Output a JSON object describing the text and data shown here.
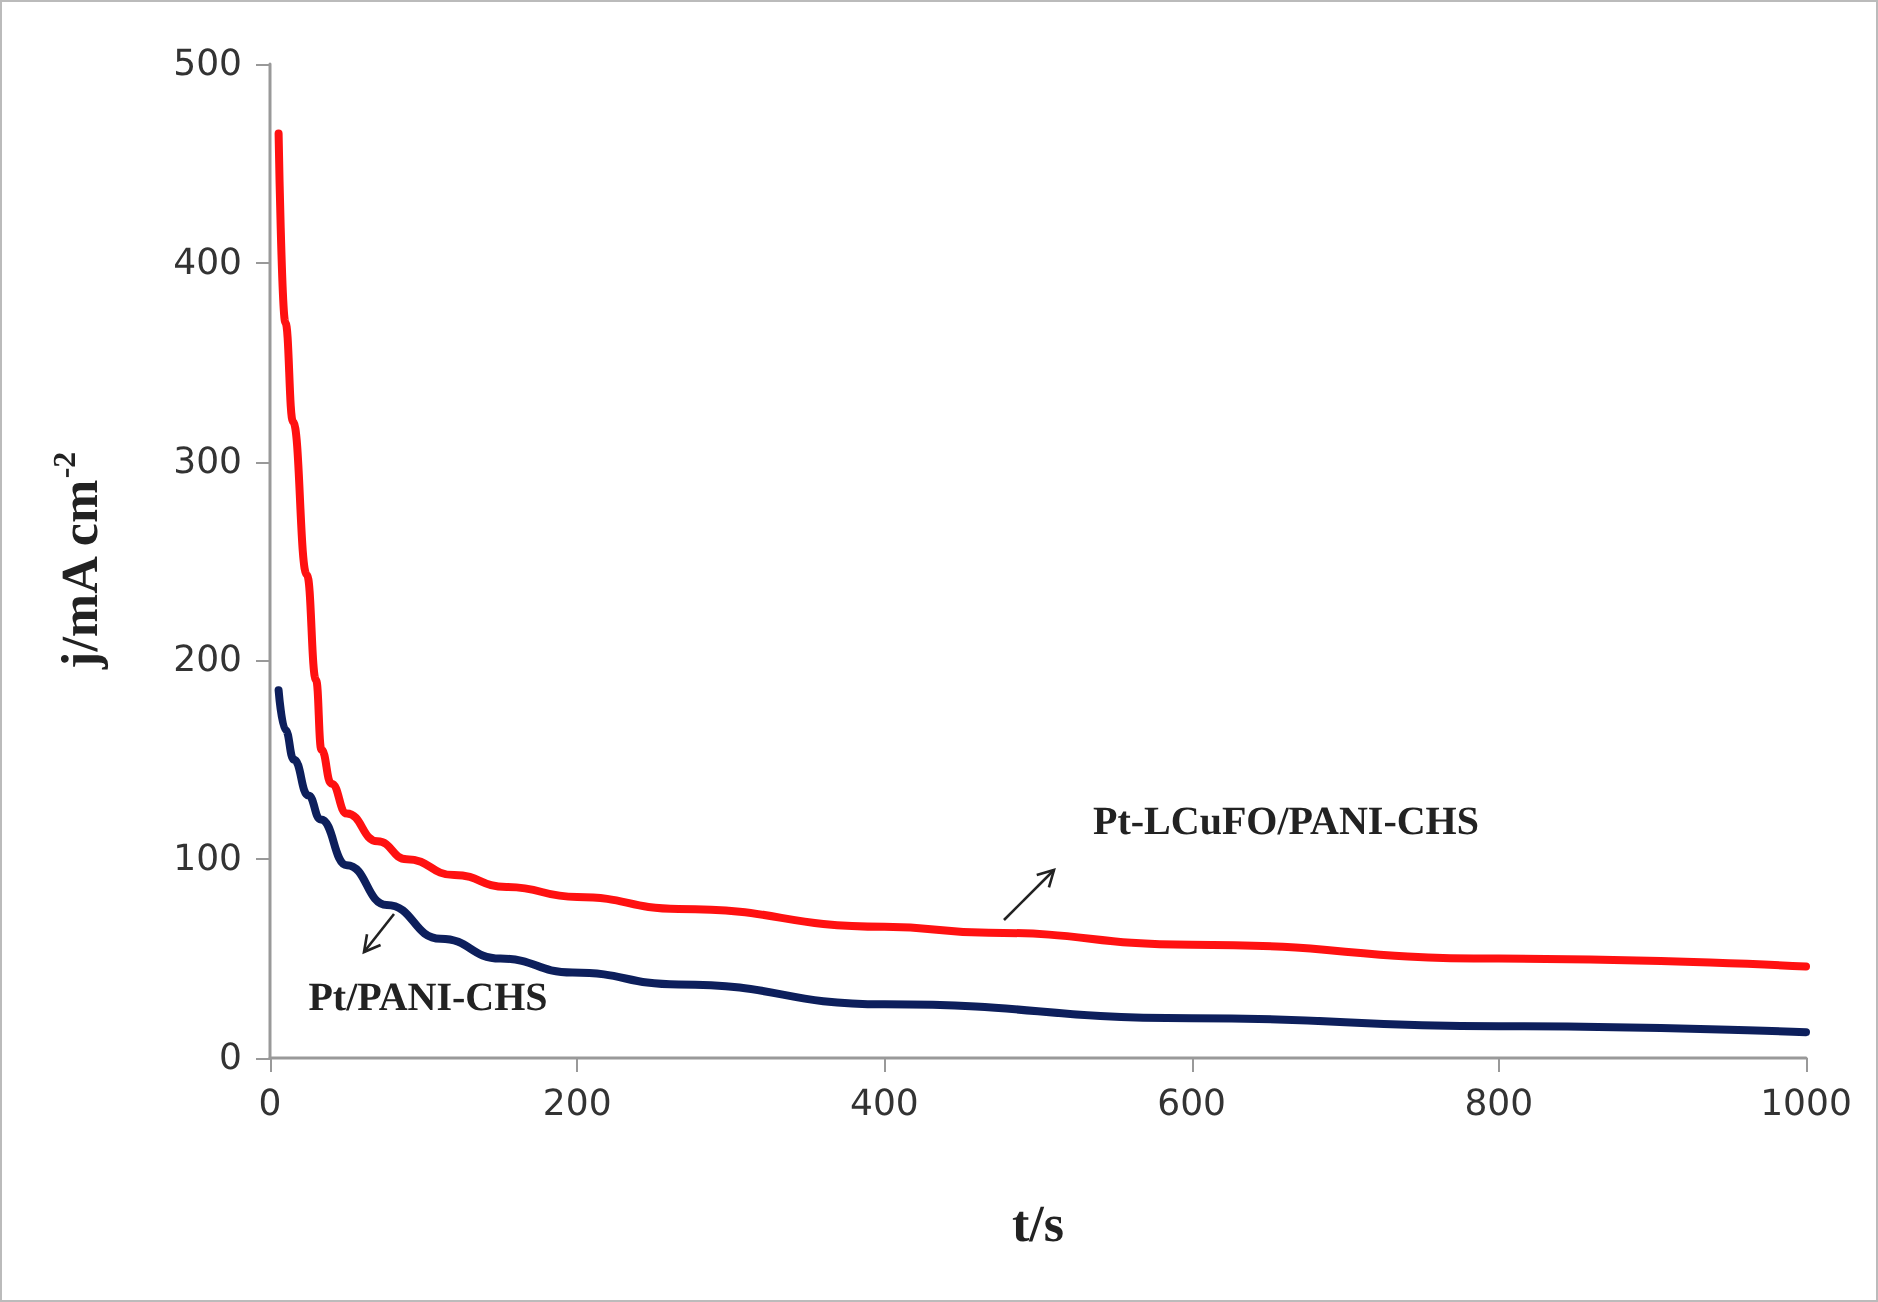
{
  "chart_data": {
    "type": "line",
    "xlabel": "t/s",
    "ylabel": "j/mA cm$^{-2}$",
    "xlim": [
      0,
      1000
    ],
    "xticks": [
      0,
      200,
      400,
      600,
      800,
      1000
    ],
    "ylim": [
      0,
      500
    ],
    "yticks": [
      0,
      100,
      200,
      300,
      400,
      500
    ],
    "grid": false,
    "marker": "none",
    "line_style": "solid",
    "series": [
      {
        "color": "#ff1111",
        "x": [
          5.6,
          10,
          15,
          24,
          30,
          33.5,
          40,
          50,
          70,
          89,
          120,
          154,
          200,
          266,
          400,
          468,
          600,
          800,
          1000
        ],
        "values": [
          465,
          370,
          320,
          243,
          190,
          155,
          138,
          123,
          109,
          100,
          92,
          86,
          81,
          75,
          66,
          63,
          57,
          50,
          46
        ]
      },
      {
        "color": "#0d1f5c",
        "x": [
          5.6,
          10,
          15.6,
          25,
          33,
          50,
          76,
          111,
          150,
          197,
          266,
          400,
          600,
          800,
          1000
        ],
        "values": [
          185,
          165,
          150,
          132,
          120,
          97,
          77,
          60,
          50,
          43,
          37,
          27,
          20,
          16,
          13
        ]
      }
    ],
    "annotations": [
      "Pt-LCuFO/PANI-CHS",
      "Pt/PANI-CHS"
    ]
  }
}
